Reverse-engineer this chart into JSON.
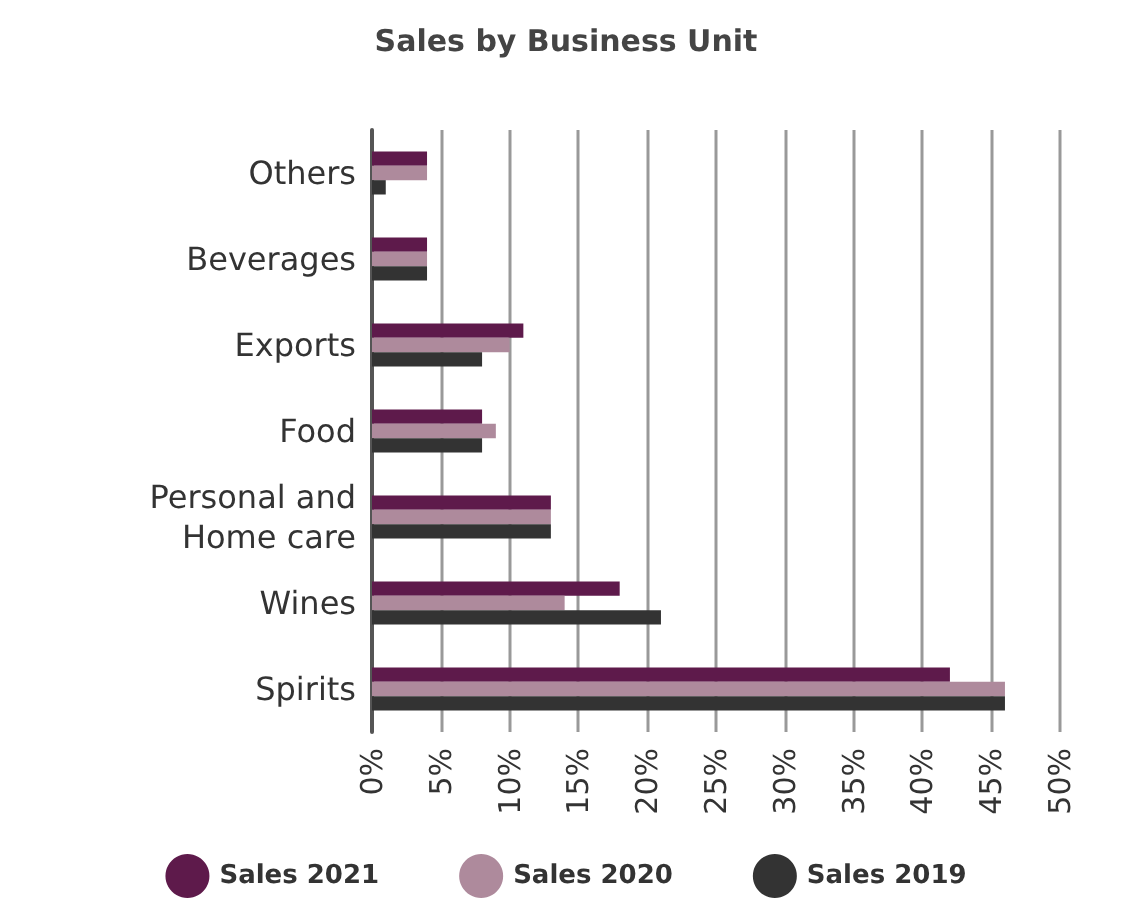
{
  "chart_data": {
    "type": "bar",
    "orientation": "horizontal",
    "title": "Sales by Business Unit",
    "categories": [
      "Others",
      "Beverages",
      "Exports",
      "Food",
      "Personal and\nHome care",
      "Wines",
      "Spirits"
    ],
    "series": [
      {
        "name": "Sales 2021",
        "color": "#5e1a4b",
        "values": [
          4,
          4,
          11,
          8,
          13,
          18,
          42
        ]
      },
      {
        "name": "Sales 2020",
        "color": "#ae8a9c",
        "values": [
          4,
          4,
          10,
          9,
          13,
          14,
          46
        ]
      },
      {
        "name": "Sales 2019",
        "color": "#333333",
        "values": [
          1,
          4,
          8,
          8,
          13,
          21,
          46
        ]
      }
    ],
    "xlim": [
      0,
      50
    ],
    "xticks": [
      {
        "value": 0,
        "label": "0%"
      },
      {
        "value": 5,
        "label": "5%"
      },
      {
        "value": 10,
        "label": "10%"
      },
      {
        "value": 15,
        "label": "15%"
      },
      {
        "value": 20,
        "label": "20%"
      },
      {
        "value": 25,
        "label": "25%"
      },
      {
        "value": 30,
        "label": "30%"
      },
      {
        "value": 35,
        "label": "35%"
      },
      {
        "value": 40,
        "label": "40%"
      },
      {
        "value": 45,
        "label": "45%"
      },
      {
        "value": 50,
        "label": "50%"
      }
    ],
    "grid": "x",
    "legend": "bottom"
  }
}
